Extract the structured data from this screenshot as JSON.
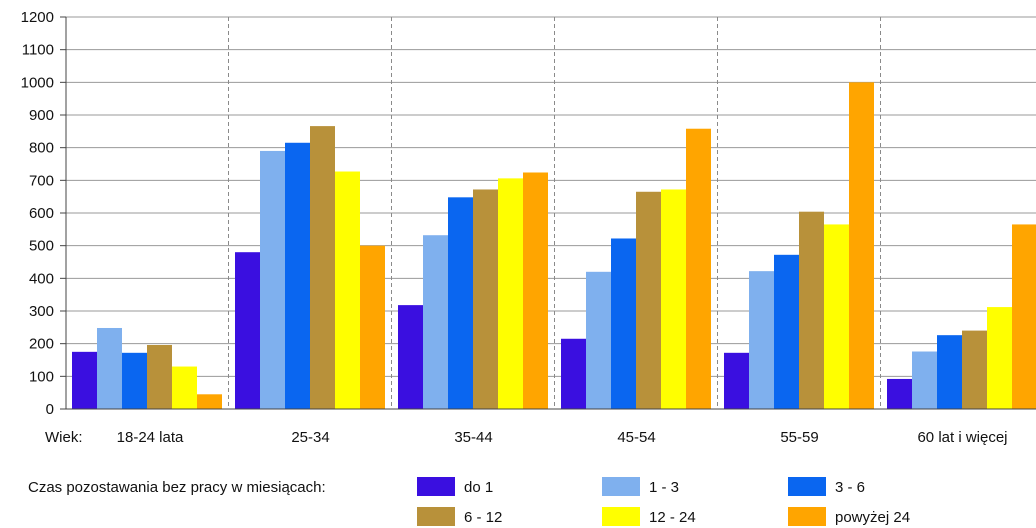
{
  "chart_data": {
    "type": "bar",
    "x_prefix_label": "Wiek:",
    "categories": [
      "18-24 lata",
      "25-34",
      "35-44",
      "45-54",
      "55-59",
      "60 lat i więcej"
    ],
    "ylim": [
      0,
      1200
    ],
    "yticks": [
      0,
      100,
      200,
      300,
      400,
      500,
      600,
      700,
      800,
      900,
      1000,
      1100,
      1200
    ],
    "grid": true,
    "legend_title": "Czas pozostawania bez pracy w miesiącach:",
    "legend_position": "bottom",
    "series": [
      {
        "name": "do 1",
        "color": "#3A0FE0",
        "values": [
          175,
          480,
          318,
          215,
          172,
          92
        ]
      },
      {
        "name": "1 - 3",
        "color": "#7FB0EE",
        "values": [
          248,
          790,
          532,
          420,
          422,
          176
        ]
      },
      {
        "name": "3 - 6",
        "color": "#0A66F0",
        "values": [
          172,
          815,
          648,
          522,
          472,
          226
        ]
      },
      {
        "name": "6 - 12",
        "color": "#B8913A",
        "values": [
          196,
          866,
          672,
          665,
          604,
          240
        ]
      },
      {
        "name": "12 - 24",
        "color": "#FFFF00",
        "values": [
          130,
          727,
          706,
          672,
          565,
          312
        ]
      },
      {
        "name": "powyżej 24",
        "color": "#FFA500",
        "values": [
          45,
          500,
          724,
          858,
          1000,
          565
        ]
      }
    ]
  }
}
